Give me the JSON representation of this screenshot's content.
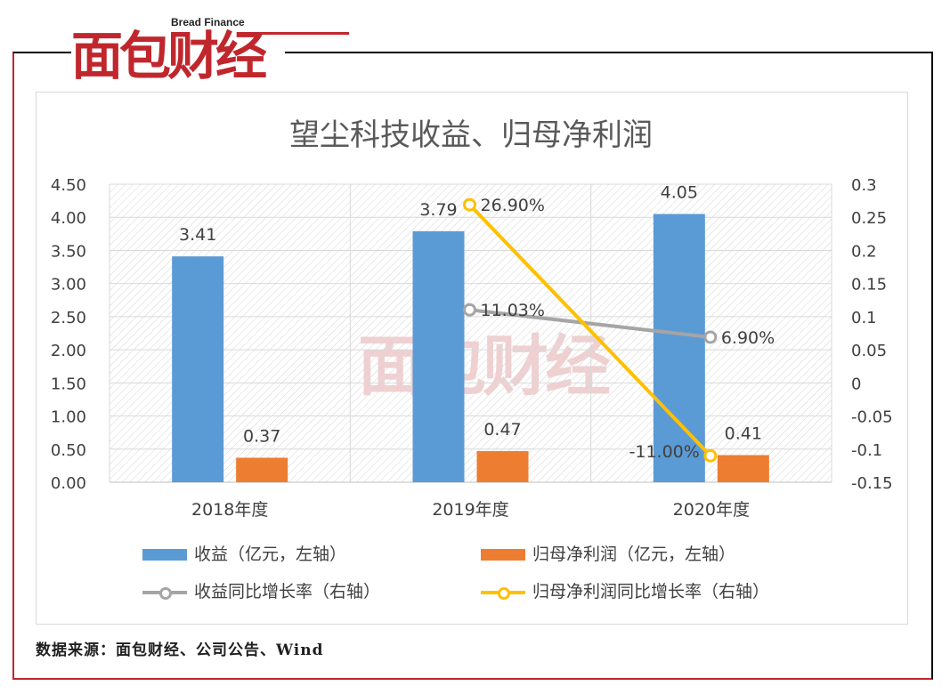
{
  "brand": {
    "logo_text": "面包财经",
    "logo_tagline": "Bread Finance"
  },
  "source_note": "数据来源：面包财经、公司公告、Wind",
  "colors": {
    "revenue": "#5b9bd5",
    "profit": "#ed7d31",
    "revenue_growth": "#a5a5a5",
    "profit_growth": "#ffc000",
    "brand_red": "#c0272d"
  },
  "chart_data": {
    "type": "bar",
    "title": "望尘科技收益、归母净利润",
    "categories": [
      "2018年度",
      "2019年度",
      "2020年度"
    ],
    "y_left": {
      "ylim": [
        0,
        4.5
      ],
      "ticks": [
        "0.00",
        "0.50",
        "1.00",
        "1.50",
        "2.00",
        "2.50",
        "3.00",
        "3.50",
        "4.00",
        "4.50"
      ]
    },
    "y_right": {
      "ylim": [
        -0.15,
        0.3
      ],
      "ticks": [
        "-0.15",
        "-0.1",
        "-0.05",
        "0",
        "0.05",
        "0.1",
        "0.15",
        "0.2",
        "0.25",
        "0.3"
      ]
    },
    "grid": true,
    "legend_position": "bottom",
    "series": [
      {
        "name": "收益（亿元，左轴）",
        "kind": "bar",
        "axis": "left",
        "values": [
          3.41,
          3.79,
          4.05
        ],
        "labels": [
          "3.41",
          "3.79",
          "4.05"
        ]
      },
      {
        "name": "归母净利润（亿元，左轴）",
        "kind": "bar",
        "axis": "left",
        "values": [
          0.37,
          0.47,
          0.41
        ],
        "labels": [
          "0.37",
          "0.47",
          "0.41"
        ]
      },
      {
        "name": "收益同比增长率（右轴）",
        "kind": "line",
        "axis": "right",
        "values": [
          null,
          0.1103,
          0.069
        ],
        "labels": [
          null,
          "11.03%",
          "6.90%"
        ]
      },
      {
        "name": "归母净利润同比增长率（右轴）",
        "kind": "line",
        "axis": "right",
        "values": [
          null,
          0.269,
          -0.11
        ],
        "labels": [
          null,
          "26.90%",
          "-11.00%"
        ]
      }
    ]
  }
}
